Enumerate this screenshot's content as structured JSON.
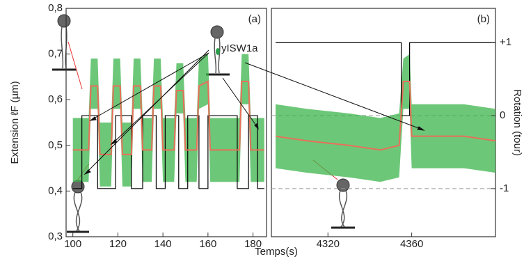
{
  "y_label": "Extension ℓF (µm)",
  "x_label": "Temps(s)",
  "y2_label": "Rotation (tour)",
  "annotation": "yISW1a",
  "chart_data": [
    {
      "type": "line",
      "panel_label": "(a)",
      "xlim": [
        97,
        186
      ],
      "ylim": [
        0.3,
        0.8
      ],
      "y2lim": [
        -1.66,
        1.47
      ],
      "xticks": [
        100,
        120,
        140,
        160,
        180
      ],
      "yticks": [
        {
          "value": 0.3,
          "label": "0,3"
        },
        {
          "value": 0.4,
          "label": "0,4"
        },
        {
          "value": 0.5,
          "label": "0,5"
        },
        {
          "value": 0.6,
          "label": "0,6"
        },
        {
          "value": 0.7,
          "label": "0,7"
        },
        {
          "value": 0.8,
          "label": "0,8"
        }
      ],
      "x": [
        100,
        107,
        108,
        111,
        112,
        117,
        118,
        121,
        122,
        126,
        127,
        130,
        131,
        135,
        136,
        139,
        140,
        145,
        146,
        149,
        150,
        155,
        156,
        160,
        161,
        174,
        175,
        178,
        179,
        185
      ],
      "series": [
        {
          "color": "#e8705a",
          "values": [
            0.49,
            0.49,
            0.63,
            0.63,
            0.48,
            0.48,
            0.63,
            0.63,
            0.48,
            0.48,
            0.63,
            0.63,
            0.49,
            0.49,
            0.63,
            0.63,
            0.49,
            0.49,
            0.62,
            0.62,
            0.49,
            0.49,
            0.63,
            0.64,
            0.49,
            0.49,
            0.64,
            0.64,
            0.49,
            0.49
          ]
        }
      ],
      "band": {
        "color": "#3cb44b",
        "low": [
          0.42,
          0.42,
          0.58,
          0.58,
          0.41,
          0.41,
          0.58,
          0.58,
          0.41,
          0.41,
          0.58,
          0.58,
          0.42,
          0.42,
          0.58,
          0.58,
          0.42,
          0.42,
          0.57,
          0.57,
          0.42,
          0.42,
          0.58,
          0.59,
          0.42,
          0.42,
          0.59,
          0.59,
          0.42,
          0.42
        ],
        "high": [
          0.56,
          0.56,
          0.69,
          0.69,
          0.55,
          0.55,
          0.69,
          0.69,
          0.55,
          0.55,
          0.69,
          0.69,
          0.56,
          0.56,
          0.69,
          0.69,
          0.56,
          0.56,
          0.68,
          0.68,
          0.56,
          0.56,
          0.69,
          0.7,
          0.56,
          0.56,
          0.7,
          0.7,
          0.56,
          0.56
        ]
      },
      "rotation": {
        "color": "#000000",
        "axis": "y2",
        "x": [
          100,
          104,
          104,
          111,
          111,
          119,
          119,
          126,
          126,
          131,
          131,
          137,
          137,
          141,
          141,
          147,
          147,
          151,
          151,
          156,
          156,
          160,
          160,
          173,
          173,
          178,
          178,
          182,
          182,
          185
        ],
        "values": [
          -1,
          -1,
          0,
          0,
          -1,
          -1,
          0,
          0,
          -1,
          -1,
          0,
          0,
          -1,
          -1,
          0,
          0,
          -1,
          -1,
          0,
          0,
          -1,
          -1,
          0,
          0,
          -1,
          -1,
          0,
          0,
          -1,
          -1
        ]
      }
    },
    {
      "type": "line",
      "panel_label": "(b)",
      "xlim": [
        4293,
        4400
      ],
      "ylim": [
        0.3,
        0.8
      ],
      "y2lim": [
        -1.66,
        1.47
      ],
      "xticks": [
        4320,
        4360
      ],
      "y2ticks": [
        {
          "value": 1,
          "label": "+1"
        },
        0,
        -1
      ],
      "dashed_lines": [
        0,
        -1
      ],
      "x": [
        4295,
        4310,
        4330,
        4345,
        4354,
        4356,
        4359,
        4360,
        4370,
        4385,
        4400
      ],
      "series": [
        {
          "color": "#e8705a",
          "values": [
            0.52,
            0.51,
            0.5,
            0.49,
            0.5,
            0.64,
            0.64,
            0.52,
            0.52,
            0.52,
            0.51
          ]
        }
      ],
      "band": {
        "color": "#3cb44b",
        "low": [
          0.45,
          0.44,
          0.43,
          0.42,
          0.43,
          0.58,
          0.58,
          0.45,
          0.45,
          0.45,
          0.44
        ],
        "high": [
          0.59,
          0.58,
          0.57,
          0.56,
          0.57,
          0.69,
          0.7,
          0.59,
          0.59,
          0.59,
          0.58
        ]
      },
      "rotation": {
        "color": "#000000",
        "axis": "y2",
        "x": [
          4295,
          4355,
          4355,
          4359,
          4359,
          4400
        ],
        "values": [
          1,
          1,
          0,
          0,
          1,
          1
        ]
      }
    }
  ]
}
